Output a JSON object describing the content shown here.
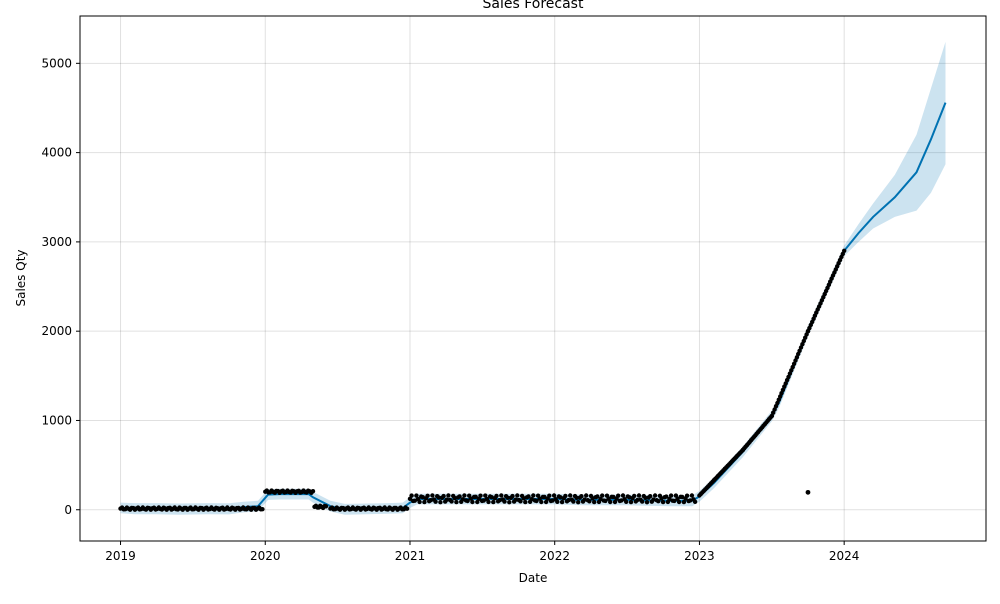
{
  "chart_data": {
    "type": "line",
    "title": "Sales Forecast",
    "xlabel": "Date",
    "ylabel": "Sales Qty",
    "xlim": [
      2018.72,
      2024.98
    ],
    "ylim": [
      -350,
      5530
    ],
    "x_ticks": [
      2019,
      2020,
      2021,
      2022,
      2023,
      2024
    ],
    "x_tick_labels": [
      "2019",
      "2020",
      "2021",
      "2022",
      "2023",
      "2024"
    ],
    "y_ticks": [
      0,
      1000,
      2000,
      3000,
      4000,
      5000
    ],
    "y_tick_labels": [
      "0",
      "1000",
      "2000",
      "3000",
      "4000",
      "5000"
    ],
    "grid": true,
    "colors": {
      "forecast_line": "#0072B2",
      "interval_fill": "#0072B2",
      "actuals": "#000000"
    },
    "series": [
      {
        "role": "forecast",
        "x": [
          2019.0,
          2019.1,
          2019.25,
          2019.4,
          2019.6,
          2019.75,
          2019.85,
          2019.95,
          2020.02,
          2020.1,
          2020.2,
          2020.3,
          2020.33,
          2020.45,
          2020.55,
          2020.7,
          2020.85,
          2020.95,
          2021.0,
          2021.05,
          2021.2,
          2021.5,
          2021.8,
          2022.0,
          2022.2,
          2022.5,
          2022.8,
          2022.95,
          2023.0,
          2023.1,
          2023.3,
          2023.5,
          2023.55,
          2023.75,
          2024.0,
          2024.1,
          2024.2,
          2024.35,
          2024.5,
          2024.6,
          2024.7
        ],
        "y": [
          20,
          15,
          15,
          10,
          15,
          12,
          30,
          40,
          170,
          175,
          175,
          175,
          140,
          40,
          5,
          10,
          15,
          20,
          80,
          120,
          120,
          120,
          120,
          120,
          110,
          110,
          100,
          100,
          150,
          300,
          650,
          1050,
          1200,
          2000,
          2900,
          3100,
          3280,
          3500,
          3780,
          4150,
          4560
        ],
        "lower": [
          -40,
          -50,
          -50,
          -55,
          -50,
          -52,
          -30,
          -20,
          110,
          115,
          115,
          115,
          80,
          -20,
          -55,
          -50,
          -45,
          -40,
          20,
          60,
          60,
          60,
          60,
          60,
          50,
          50,
          40,
          40,
          90,
          240,
          590,
          990,
          1140,
          1940,
          2840,
          3000,
          3150,
          3280,
          3350,
          3550,
          3870
        ],
        "upper": [
          80,
          75,
          75,
          70,
          75,
          72,
          90,
          100,
          230,
          235,
          235,
          235,
          200,
          100,
          65,
          70,
          75,
          80,
          140,
          180,
          180,
          180,
          180,
          180,
          170,
          170,
          160,
          160,
          210,
          360,
          710,
          1110,
          1260,
          2060,
          2960,
          3200,
          3430,
          3750,
          4200,
          4720,
          5240
        ]
      },
      {
        "role": "actual",
        "segments": [
          {
            "x0": 2019.0,
            "x1": 2019.98,
            "y_low": 0,
            "y_high": 25
          },
          {
            "x0": 2020.0,
            "x1": 2020.33,
            "y_low": 190,
            "y_high": 215
          },
          {
            "x0": 2020.34,
            "x1": 2020.42,
            "y_low": 20,
            "y_high": 45
          },
          {
            "x0": 2020.45,
            "x1": 2020.98,
            "y_low": 0,
            "y_high": 25
          },
          {
            "x0": 2021.0,
            "x1": 2022.97,
            "y_low": 85,
            "y_high": 160
          }
        ],
        "ramp": {
          "x": [
            2023.0,
            2023.1,
            2023.3,
            2023.5,
            2023.75,
            2024.0
          ],
          "y": [
            160,
            330,
            670,
            1050,
            2000,
            2900
          ]
        },
        "outlier": {
          "x": 2023.75,
          "y": 195
        }
      }
    ]
  }
}
